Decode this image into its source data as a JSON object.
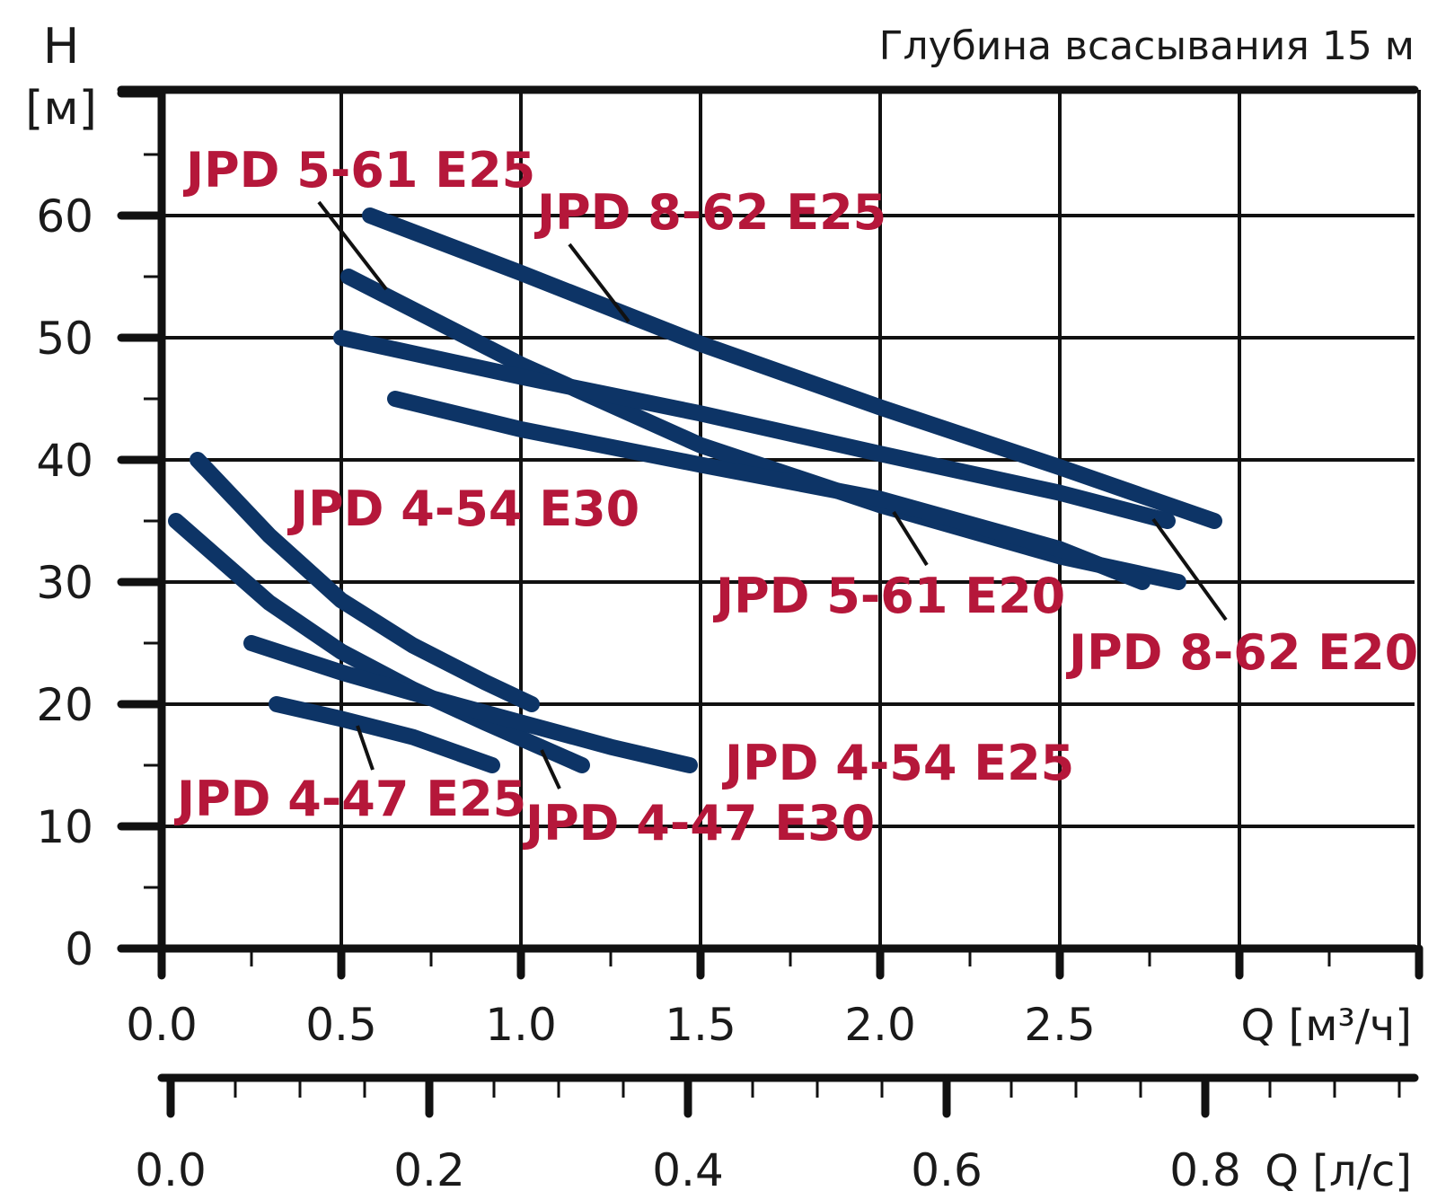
{
  "chart_data": {
    "type": "line",
    "title": "Глубина всасывания 15 м",
    "ylabel_top": "H",
    "ylabel_unit": "[м]",
    "xlabel": "Q [м³/ч]",
    "x2label": "Q [л/с]",
    "ylim": [
      0,
      70
    ],
    "xlim": [
      0,
      3.5
    ],
    "x2lim": [
      0,
      0.972
    ],
    "y_ticks": [
      "0",
      "10",
      "20",
      "30",
      "40",
      "50",
      "60"
    ],
    "x_ticks": [
      "0.0",
      "0.5",
      "1.0",
      "1.5",
      "2.0",
      "2.5"
    ],
    "x2_ticks": [
      "0.0",
      "0.2",
      "0.4",
      "0.6",
      "0.8"
    ],
    "grid": true,
    "series": [
      {
        "name": "JPD 8-62 E25",
        "x": [
          0.58,
          1.0,
          1.5,
          2.0,
          2.5,
          2.93
        ],
        "y": [
          60,
          55.3,
          49.5,
          44.3,
          39.4,
          35
        ]
      },
      {
        "name": "JPD 5-61 E25",
        "x": [
          0.52,
          1.0,
          1.5,
          2.0,
          2.5,
          2.83
        ],
        "y": [
          55,
          47.8,
          41.2,
          36.3,
          32.1,
          30
        ]
      },
      {
        "name": "JPD 8-62 E20",
        "x": [
          0.5,
          1.0,
          1.5,
          2.0,
          2.5,
          2.8
        ],
        "y": [
          50,
          46.8,
          43.8,
          40.5,
          37.3,
          35
        ]
      },
      {
        "name": "JPD 5-61 E20",
        "x": [
          0.65,
          1.0,
          1.5,
          2.0,
          2.5,
          2.73
        ],
        "y": [
          45,
          42.5,
          39.6,
          36.8,
          32.7,
          30
        ]
      },
      {
        "name": "JPD 4-54 E30",
        "x": [
          0.1,
          0.3,
          0.5,
          0.7,
          0.9,
          1.03
        ],
        "y": [
          40,
          33.8,
          28.5,
          24.8,
          21.8,
          20
        ]
      },
      {
        "name": "JPD 4-47 E30",
        "x": [
          0.04,
          0.3,
          0.5,
          0.7,
          0.9,
          1.17
        ],
        "y": [
          35,
          28.3,
          24.3,
          21.2,
          18.5,
          15
        ]
      },
      {
        "name": "JPD 4-54 E25",
        "x": [
          0.25,
          0.5,
          0.75,
          1.0,
          1.25,
          1.47
        ],
        "y": [
          25,
          22.6,
          20.5,
          18.5,
          16.5,
          15
        ]
      },
      {
        "name": "JPD 4-47 E25",
        "x": [
          0.32,
          0.5,
          0.7,
          0.92
        ],
        "y": [
          20,
          18.8,
          17.3,
          15
        ]
      }
    ]
  }
}
